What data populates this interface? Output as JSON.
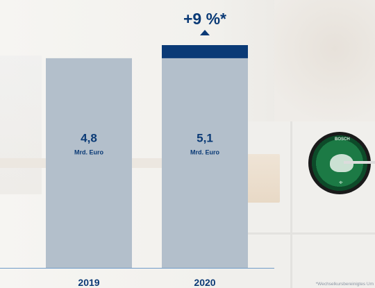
{
  "chart_data": {
    "type": "bar",
    "categories": [
      "2019",
      "2020"
    ],
    "values": [
      4.8,
      5.1
    ],
    "value_labels": [
      "4,8",
      "5,1"
    ],
    "unit_label": "Mrd. Euro",
    "ylim": [
      0,
      5.1
    ],
    "change_label": "+9 %*",
    "grid": false,
    "legend": "none"
  },
  "colors": {
    "bar": "#b3bfcb",
    "increment": "#0a3a76",
    "text": "#0a3a76",
    "axis": "#6f9bc8",
    "footnote": "#8b95a3"
  },
  "device": {
    "brand": "BOSCH"
  },
  "footnote": "*Wechselkursbereinigtes Um"
}
